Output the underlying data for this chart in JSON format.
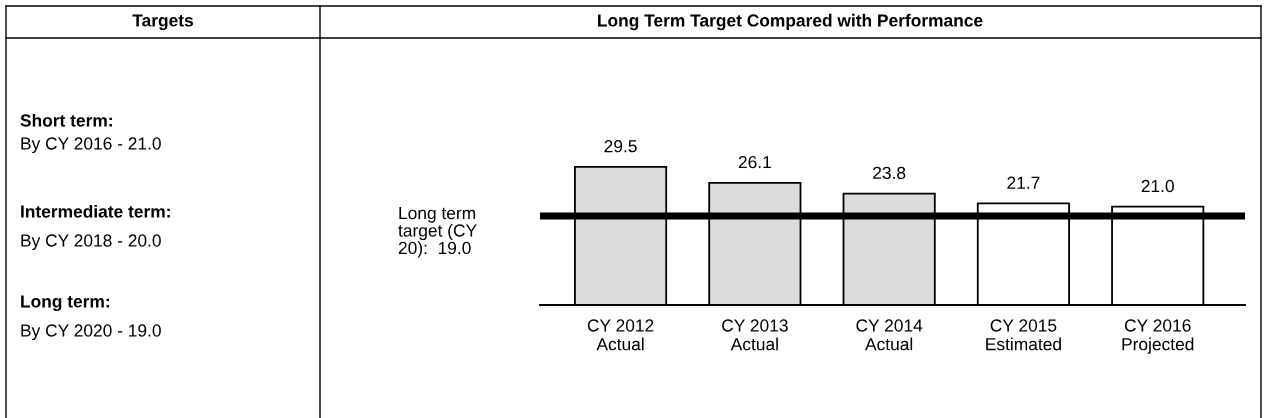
{
  "chart_data": {
    "type": "bar",
    "title": "Long Term Target Compared with Performance",
    "categories": [
      "CY 2012\nActual",
      "CY 2013\nActual",
      "CY 2014\nActual",
      "CY 2015\nEstimated",
      "CY 2016\nProjected"
    ],
    "values": [
      29.5,
      26.1,
      23.8,
      21.7,
      21.0
    ],
    "colors": [
      "#dcdcdc",
      "#dcdcdc",
      "#dcdcdc",
      "#ffffff",
      "#ffffff"
    ],
    "value_labels": [
      "29.5",
      "26.1",
      "23.8",
      "21.7",
      "21.0"
    ],
    "tick_labels": "x",
    "ref_lines": [
      {
        "axis": "y",
        "value": 19.0,
        "label": "Long term\ntarget (CY\n20):  19.0",
        "color": "#000000"
      }
    ],
    "annotations": [
      "Targets",
      "Short term:",
      "By CY 2016 - 21.0",
      "Intermediate term:",
      "By CY 2018 - 20.0",
      "Long term:",
      "By CY 2020 - 19.0"
    ]
  }
}
